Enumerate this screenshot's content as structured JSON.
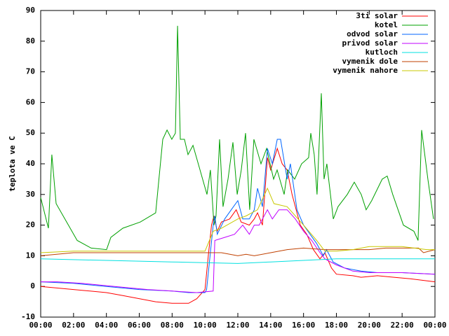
{
  "chart_data": {
    "type": "line",
    "ylabel": "teplota ve C",
    "xlim": [
      0,
      24
    ],
    "xticks": [
      {
        "value": 0,
        "label": "00:00"
      },
      {
        "value": 2,
        "label": "02:00"
      },
      {
        "value": 4,
        "label": "04:00"
      },
      {
        "value": 6,
        "label": "06:00"
      },
      {
        "value": 8,
        "label": "08:00"
      },
      {
        "value": 10,
        "label": "10:00"
      },
      {
        "value": 12,
        "label": "12:00"
      },
      {
        "value": 14,
        "label": "14:00"
      },
      {
        "value": 16,
        "label": "16:00"
      },
      {
        "value": 18,
        "label": "18:00"
      },
      {
        "value": 20,
        "label": "20:00"
      },
      {
        "value": 22,
        "label": "22:00"
      },
      {
        "value": 24,
        "label": "00:00"
      }
    ],
    "ylim": [
      -10,
      90
    ],
    "yticks": [
      -10,
      0,
      10,
      20,
      30,
      40,
      50,
      60,
      70,
      80,
      90
    ],
    "grid": false,
    "legend": "top-right",
    "series": [
      {
        "name": "3ti solar",
        "color": "#ff0000",
        "x": [
          0,
          2,
          4,
          5,
          7,
          8,
          9,
          9.5,
          10,
          10.2,
          10.4,
          10.55,
          10.75,
          11,
          11.5,
          11.9,
          12.2,
          12.7,
          13,
          13.2,
          13.5,
          13.8,
          14,
          14.4,
          14.7,
          15,
          15.3,
          15.8,
          16.2,
          16.6,
          17,
          17.3,
          17.7,
          18,
          19,
          19.5,
          20.5,
          21.5,
          22.5,
          24
        ],
        "values": [
          0,
          -1,
          -2,
          -3,
          -5,
          -5.5,
          -5.5,
          -4,
          -1,
          10,
          20,
          23,
          18,
          21,
          22,
          25,
          21,
          20,
          22,
          24,
          20,
          42,
          38,
          45,
          40,
          38,
          30,
          20,
          17,
          12,
          9,
          11,
          6,
          4,
          3.5,
          3,
          3.5,
          3,
          2.5,
          1.5
        ]
      },
      {
        "name": "kotel",
        "color": "#00a000",
        "x": [
          0,
          0.47,
          0.68,
          0.94,
          2.22,
          3.07,
          4.01,
          4.27,
          5,
          6.06,
          7,
          7.43,
          7.69,
          7.98,
          8.2,
          8.33,
          8.5,
          8.75,
          8.97,
          9.27,
          9.7,
          10.12,
          10.33,
          10.55,
          10.67,
          10.89,
          11.1,
          11.4,
          11.7,
          11.96,
          12.21,
          12.47,
          12.72,
          12.98,
          13.41,
          13.75,
          14.18,
          14.39,
          14.82,
          15.03,
          15.46,
          15.88,
          16.31,
          16.44,
          16.65,
          16.82,
          17.08,
          17.25,
          17.42,
          17.81,
          18.1,
          18.66,
          19.09,
          19.51,
          19.81,
          20.15,
          20.79,
          21.09,
          21.43,
          22.08,
          22.72,
          22.97,
          23.19,
          23.57,
          23.91
        ],
        "values": [
          29,
          19,
          43,
          27,
          15,
          12.5,
          12,
          16,
          19,
          21,
          24,
          48,
          51,
          48,
          50,
          85,
          48,
          48,
          43,
          46,
          38,
          30,
          38,
          20,
          23,
          48,
          26,
          35,
          47,
          30,
          38,
          50,
          25,
          48,
          40,
          45,
          35,
          38,
          30,
          38,
          35,
          40,
          42,
          50,
          43,
          30,
          63,
          35,
          40,
          22,
          26,
          30,
          34,
          30,
          25,
          28,
          35,
          36,
          30,
          20,
          18,
          15,
          51,
          35,
          22
        ]
      },
      {
        "name": "odvod solar",
        "color": "#0066ff",
        "x": [
          0,
          2,
          4,
          6,
          8,
          9,
          10,
          10.1,
          10.5,
          10.6,
          10.75,
          11.2,
          11.6,
          12,
          12.3,
          12.7,
          13,
          13.2,
          13.5,
          13.8,
          14.1,
          14.4,
          14.6,
          15,
          15.2,
          15.6,
          16,
          16.4,
          16.8,
          17.2,
          17.4,
          17.8,
          18.5,
          19.5,
          20.5,
          22,
          24
        ],
        "values": [
          1.5,
          1,
          0,
          -1,
          -1.5,
          -2,
          -2,
          -1,
          20,
          23,
          17,
          22,
          25,
          28,
          22,
          22,
          25,
          32,
          26,
          45,
          40,
          48,
          48,
          35,
          40,
          25,
          20,
          17,
          14,
          10,
          12,
          8,
          6,
          5,
          4.5,
          4.5,
          4
        ]
      },
      {
        "name": "privod solar",
        "color": "#c000ff",
        "x": [
          0,
          1,
          2.5,
          4.5,
          6.5,
          8,
          9.5,
          10.5,
          10.6,
          11.2,
          11.8,
          12.3,
          12.7,
          13,
          13.3,
          13.8,
          14.1,
          14.5,
          15,
          15.5,
          16,
          16.5,
          17,
          17.3,
          18,
          19,
          20,
          22,
          24
        ],
        "values": [
          1.5,
          1.5,
          1,
          0,
          -1,
          -1.5,
          -2,
          -1.5,
          15,
          16,
          17,
          20,
          17,
          20,
          20,
          25,
          22,
          25,
          25,
          22,
          18,
          15,
          11,
          9,
          7,
          5,
          4.5,
          4.5,
          4
        ]
      },
      {
        "name": "kutloch",
        "color": "#00e0e0",
        "x": [
          0,
          4,
          8,
          12,
          14,
          16,
          18,
          24
        ],
        "values": [
          9,
          8.5,
          8,
          7.5,
          8,
          8.5,
          9,
          9
        ]
      },
      {
        "name": "vymenik dole",
        "color": "#c04000",
        "x": [
          0,
          2,
          10.5,
          11,
          12,
          12.5,
          13,
          14,
          15,
          16,
          17.3,
          18,
          20,
          21,
          23,
          23.3,
          24
        ],
        "values": [
          10,
          11,
          11,
          11,
          10,
          10.5,
          10,
          11,
          12,
          12.5,
          12,
          12,
          12,
          12.5,
          12.5,
          11,
          12
        ]
      },
      {
        "name": "vymenik nahore",
        "color": "#c8c800",
        "x": [
          0,
          2,
          10,
          10.5,
          11,
          12,
          12.5,
          13.2,
          13.8,
          14.2,
          15,
          16,
          16.8,
          17.3,
          18,
          19,
          20,
          22,
          23.5,
          24
        ],
        "values": [
          11,
          11.5,
          11.5,
          18,
          19,
          22,
          23,
          25,
          32,
          27,
          26,
          20,
          15,
          11.5,
          11.5,
          12,
          13,
          13,
          12,
          12
        ]
      }
    ]
  }
}
